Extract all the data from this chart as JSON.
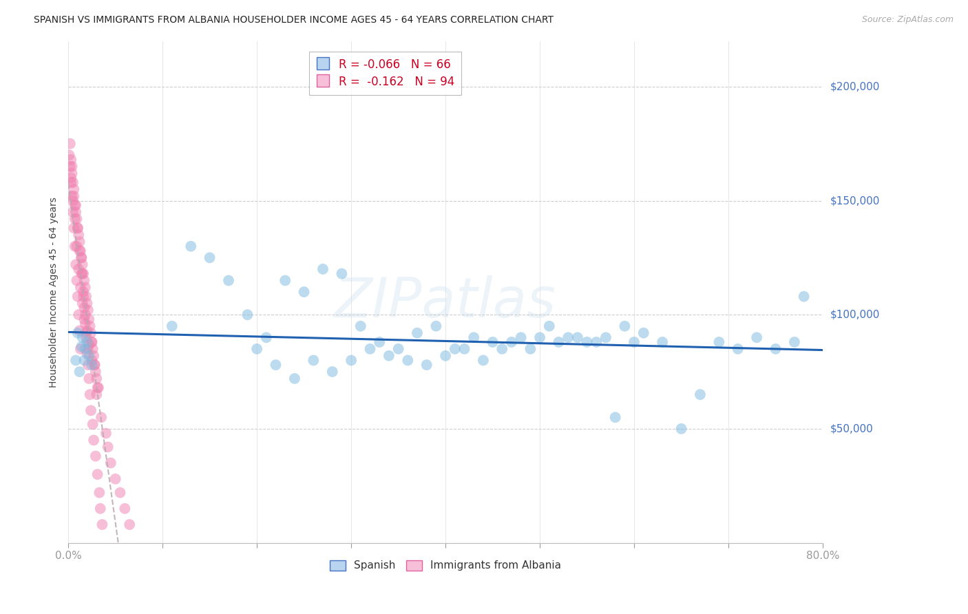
{
  "title": "SPANISH VS IMMIGRANTS FROM ALBANIA HOUSEHOLDER INCOME AGES 45 - 64 YEARS CORRELATION CHART",
  "source": "Source: ZipAtlas.com",
  "ylabel": "Householder Income Ages 45 - 64 years",
  "xlim": [
    0.0,
    0.8
  ],
  "ylim": [
    0,
    220000
  ],
  "yticks": [
    0,
    50000,
    100000,
    150000,
    200000
  ],
  "ytick_labels": [
    "",
    "$50,000",
    "$100,000",
    "$150,000",
    "$200,000"
  ],
  "background_color": "#ffffff",
  "grid_color": "#c8c8c8",
  "legend_line1": "R = -0.066   N = 66",
  "legend_line2": "R =  -0.162   N = 94",
  "blue_color": "#7db9e0",
  "pink_color": "#f080b0",
  "line_blue_color": "#2060b0",
  "line_pink_color": "#c8b0b8",
  "watermark": "ZIPatlas",
  "spanish_x": [
    0.008,
    0.012,
    0.015,
    0.018,
    0.02,
    0.022,
    0.025,
    0.01,
    0.014,
    0.017,
    0.11,
    0.13,
    0.15,
    0.17,
    0.19,
    0.21,
    0.23,
    0.25,
    0.27,
    0.29,
    0.31,
    0.33,
    0.35,
    0.37,
    0.39,
    0.41,
    0.43,
    0.45,
    0.47,
    0.49,
    0.51,
    0.53,
    0.55,
    0.57,
    0.59,
    0.61,
    0.63,
    0.65,
    0.67,
    0.69,
    0.71,
    0.73,
    0.75,
    0.77,
    0.2,
    0.22,
    0.24,
    0.26,
    0.28,
    0.3,
    0.32,
    0.34,
    0.36,
    0.38,
    0.4,
    0.42,
    0.44,
    0.46,
    0.48,
    0.5,
    0.52,
    0.54,
    0.56,
    0.58,
    0.6,
    0.78
  ],
  "spanish_y": [
    80000,
    75000,
    90000,
    85000,
    88000,
    82000,
    78000,
    92000,
    86000,
    80000,
    95000,
    130000,
    125000,
    115000,
    100000,
    90000,
    115000,
    110000,
    120000,
    118000,
    95000,
    88000,
    85000,
    92000,
    95000,
    85000,
    90000,
    88000,
    88000,
    85000,
    95000,
    90000,
    88000,
    90000,
    95000,
    92000,
    88000,
    50000,
    65000,
    88000,
    85000,
    90000,
    85000,
    88000,
    85000,
    78000,
    72000,
    80000,
    75000,
    80000,
    85000,
    82000,
    80000,
    78000,
    82000,
    85000,
    80000,
    85000,
    90000,
    90000,
    88000,
    90000,
    88000,
    55000,
    88000,
    108000
  ],
  "albania_x": [
    0.002,
    0.003,
    0.004,
    0.005,
    0.006,
    0.007,
    0.008,
    0.009,
    0.01,
    0.011,
    0.012,
    0.013,
    0.014,
    0.015,
    0.016,
    0.017,
    0.018,
    0.019,
    0.02,
    0.021,
    0.022,
    0.023,
    0.024,
    0.025,
    0.026,
    0.027,
    0.028,
    0.029,
    0.03,
    0.031,
    0.003,
    0.005,
    0.007,
    0.009,
    0.011,
    0.013,
    0.015,
    0.017,
    0.019,
    0.021,
    0.004,
    0.006,
    0.008,
    0.01,
    0.012,
    0.014,
    0.016,
    0.018,
    0.02,
    0.022,
    0.001,
    0.002,
    0.003,
    0.004,
    0.005,
    0.006,
    0.007,
    0.008,
    0.009,
    0.01,
    0.011,
    0.012,
    0.013,
    0.025,
    0.03,
    0.035,
    0.04,
    0.042,
    0.045,
    0.05,
    0.055,
    0.06,
    0.065,
    0.025,
    0.028,
    0.032,
    0.014,
    0.015,
    0.016,
    0.017,
    0.018,
    0.019,
    0.02,
    0.021,
    0.022,
    0.023,
    0.024,
    0.026,
    0.027,
    0.029,
    0.031,
    0.033,
    0.034,
    0.036
  ],
  "albania_y": [
    175000,
    168000,
    162000,
    158000,
    152000,
    148000,
    145000,
    142000,
    138000,
    135000,
    132000,
    128000,
    125000,
    122000,
    118000,
    115000,
    112000,
    108000,
    105000,
    102000,
    98000,
    95000,
    92000,
    88000,
    85000,
    82000,
    78000,
    75000,
    72000,
    68000,
    160000,
    150000,
    142000,
    130000,
    120000,
    112000,
    105000,
    98000,
    92000,
    85000,
    165000,
    155000,
    148000,
    138000,
    128000,
    118000,
    108000,
    100000,
    93000,
    87000,
    170000,
    165000,
    158000,
    152000,
    145000,
    138000,
    130000,
    122000,
    115000,
    108000,
    100000,
    93000,
    85000,
    80000,
    65000,
    55000,
    48000,
    42000,
    35000,
    28000,
    22000,
    15000,
    8000,
    88000,
    78000,
    68000,
    125000,
    118000,
    110000,
    103000,
    96000,
    90000,
    83000,
    78000,
    72000,
    65000,
    58000,
    52000,
    45000,
    38000,
    30000,
    22000,
    15000,
    8000
  ]
}
